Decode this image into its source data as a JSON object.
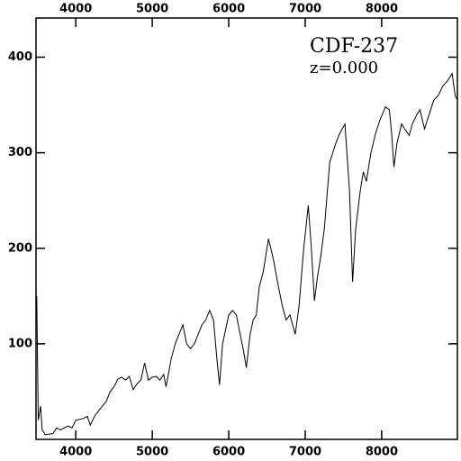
{
  "chart_data": {
    "type": "line",
    "annotations": [
      "CDF-237",
      "z=0.000"
    ],
    "x": [
      3490,
      3510,
      3540,
      3560,
      3600,
      3700,
      3750,
      3800,
      3900,
      3950,
      4000,
      4100,
      4150,
      4190,
      4250,
      4300,
      4400,
      4450,
      4500,
      4550,
      4600,
      4650,
      4700,
      4750,
      4800,
      4850,
      4900,
      4950,
      5000,
      5050,
      5100,
      5150,
      5180,
      5250,
      5300,
      5350,
      5400,
      5450,
      5500,
      5550,
      5600,
      5650,
      5700,
      5750,
      5800,
      5850,
      5880,
      5920,
      5960,
      6000,
      6050,
      6100,
      6150,
      6200,
      6230,
      6280,
      6320,
      6360,
      6400,
      6450,
      6520,
      6580,
      6650,
      6700,
      6750,
      6800,
      6870,
      6920,
      6980,
      7040,
      7080,
      7120,
      7160,
      7200,
      7250,
      7320,
      7400,
      7450,
      7520,
      7580,
      7620,
      7660,
      7720,
      7760,
      7800,
      7860,
      7920,
      7980,
      8050,
      8100,
      8130,
      8160,
      8200,
      8260,
      8300,
      8360,
      8400,
      8460,
      8500,
      8560,
      8620,
      8680,
      8740,
      8800,
      8860,
      8920,
      8960,
      8990
    ],
    "values": [
      150,
      20,
      35,
      10,
      5,
      6,
      12,
      10,
      14,
      12,
      20,
      22,
      24,
      15,
      25,
      30,
      40,
      50,
      55,
      63,
      65,
      62,
      66,
      52,
      58,
      62,
      80,
      62,
      65,
      66,
      62,
      68,
      55,
      85,
      100,
      110,
      120,
      100,
      95,
      100,
      110,
      120,
      125,
      135,
      125,
      80,
      57,
      100,
      115,
      130,
      135,
      130,
      110,
      90,
      75,
      110,
      125,
      130,
      160,
      175,
      210,
      190,
      160,
      140,
      125,
      130,
      110,
      140,
      200,
      245,
      200,
      145,
      170,
      190,
      220,
      290,
      310,
      320,
      330,
      260,
      165,
      220,
      260,
      280,
      270,
      300,
      320,
      335,
      348,
      345,
      320,
      285,
      310,
      330,
      325,
      318,
      330,
      340,
      345,
      325,
      340,
      355,
      360,
      370,
      375,
      383,
      360,
      355
    ],
    "color": "#000000",
    "xlim": [
      3480,
      8990
    ],
    "xticks": [
      4000,
      5000,
      6000,
      7000,
      8000
    ],
    "ylim": [
      0,
      441
    ],
    "yticks": [
      100,
      200,
      300,
      400
    ]
  }
}
